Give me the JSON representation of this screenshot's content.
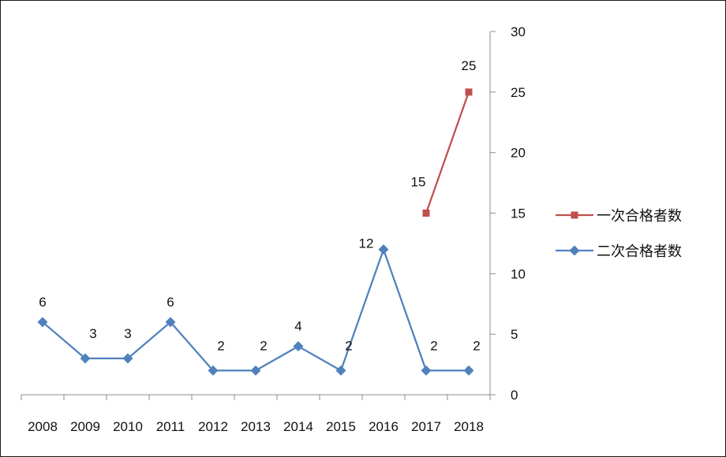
{
  "chart_data": {
    "type": "line",
    "categories": [
      "2008",
      "2009",
      "2010",
      "2011",
      "2012",
      "2013",
      "2014",
      "2015",
      "2016",
      "2017",
      "2018"
    ],
    "series": [
      {
        "name": "一次合格者数",
        "color": "#c0504d",
        "marker": "square",
        "values": [
          null,
          null,
          null,
          null,
          null,
          null,
          null,
          null,
          null,
          15,
          25
        ],
        "labels": [
          "",
          "",
          "",
          "",
          "",
          "",
          "",
          "",
          "",
          "15",
          "25"
        ]
      },
      {
        "name": "二次合格者数",
        "color": "#4f81bd",
        "marker": "diamond",
        "values": [
          6,
          3,
          3,
          6,
          2,
          2,
          4,
          2,
          12,
          2,
          2
        ],
        "labels": [
          "6",
          "3",
          "3",
          "6",
          "2",
          "2",
          "4",
          "2",
          "12",
          "2",
          "2"
        ]
      }
    ],
    "y_axis": {
      "position": "right",
      "min": 0,
      "max": 30,
      "step": 5,
      "ticks": [
        "0",
        "5",
        "10",
        "15",
        "20",
        "25",
        "30"
      ]
    },
    "grid": false,
    "legend": "right"
  }
}
